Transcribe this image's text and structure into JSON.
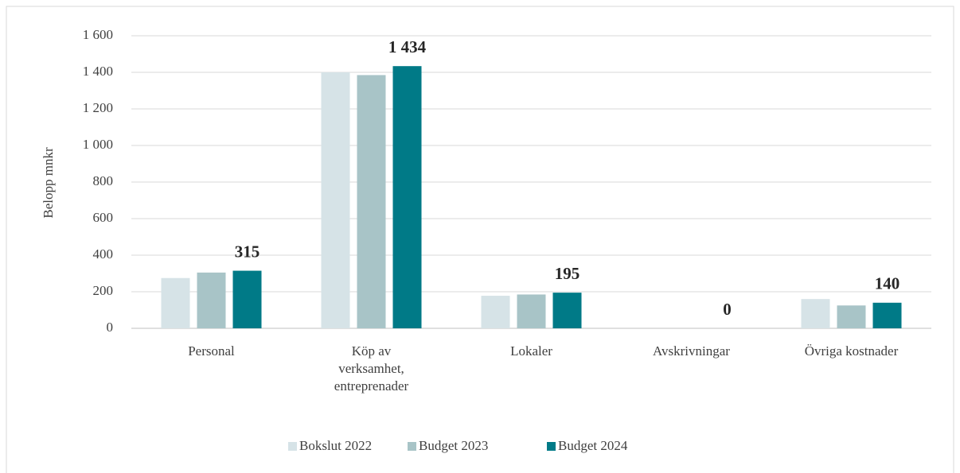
{
  "chart_data": {
    "type": "bar",
    "y_label": "Belopp mnkr",
    "categories": [
      "Personal",
      "Köp av verksamhet, entreprenader",
      "Lokaler",
      "Avskrivningar",
      "Övriga kostnader"
    ],
    "series": [
      {
        "name": "Bokslut 2022",
        "color": "#d6e3e7",
        "values": [
          275,
          1400,
          178,
          0,
          160
        ]
      },
      {
        "name": "Budget 2023",
        "color": "#a8c4c7",
        "values": [
          305,
          1385,
          185,
          0,
          125
        ]
      },
      {
        "name": "Budget 2024",
        "color": "#007a87",
        "values": [
          315,
          1434,
          195,
          0,
          140
        ],
        "value_labels": [
          "315",
          "1 434",
          "195",
          "0",
          "140"
        ]
      }
    ],
    "ylim": [
      0,
      1600
    ],
    "yticks": [
      0,
      200,
      400,
      600,
      800,
      {
        "value": 1000,
        "label": "1 000"
      },
      {
        "value": 1200,
        "label": "1 200"
      },
      {
        "value": 1400,
        "label": "1 400"
      },
      {
        "value": 1600,
        "label": "1 600"
      }
    ],
    "grid": true,
    "legend": "bottom"
  }
}
